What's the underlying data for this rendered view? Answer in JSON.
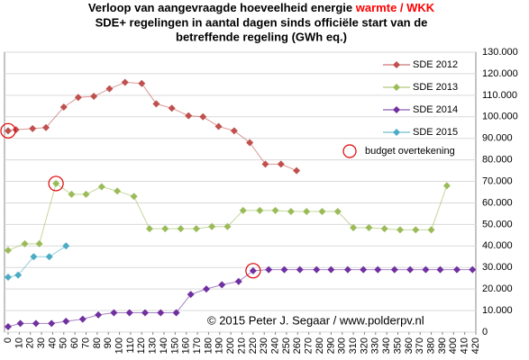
{
  "chart_data": {
    "type": "line",
    "title": "Verloop van aangevraagde hoeveelheid energie",
    "title_highlight": "warmte / WKK",
    "title_highlight_color": "#ff0000",
    "subtitle_lines": [
      "SDE+ regelingen in aantal dagen sinds officiële start van de",
      "betreffende regeling (GWh eq.)"
    ],
    "annotation": "© 2015 Peter J. Segaar / www.polderpv.nl",
    "xlim": [
      0,
      420
    ],
    "xticks": [
      0,
      10,
      20,
      30,
      40,
      50,
      60,
      70,
      80,
      90,
      100,
      110,
      120,
      130,
      140,
      150,
      160,
      170,
      180,
      190,
      200,
      210,
      220,
      230,
      240,
      250,
      260,
      270,
      280,
      290,
      300,
      310,
      320,
      330,
      340,
      350,
      360,
      370,
      380,
      390,
      400,
      410,
      420
    ],
    "ylim": [
      0,
      130000
    ],
    "yticks": [
      0,
      {
        "value": 10000,
        "label": "10.000"
      },
      {
        "value": 20000,
        "label": "20.000"
      },
      {
        "value": 30000,
        "label": "30.000"
      },
      {
        "value": 40000,
        "label": "40.000"
      },
      {
        "value": 50000,
        "label": "50.000"
      },
      {
        "value": 60000,
        "label": "60.000"
      },
      {
        "value": 70000,
        "label": "70.000"
      },
      {
        "value": 80000,
        "label": "80.000"
      },
      {
        "value": 90000,
        "label": "90.000"
      },
      {
        "value": 100000,
        "label": "100.000"
      },
      {
        "value": 110000,
        "label": "110.000"
      },
      {
        "value": 120000,
        "label": "120.000"
      },
      {
        "value": 130000,
        "label": "130.000"
      }
    ],
    "grid": true,
    "legend": "top-right",
    "series": [
      {
        "name": "SDE 2012",
        "color": "#c0504d",
        "x": [
          0,
          7,
          22,
          34,
          50,
          63,
          77,
          91,
          105,
          120,
          133,
          147,
          162,
          175,
          189,
          203,
          217,
          231,
          245,
          259
        ],
        "values": [
          93500,
          94000,
          94500,
          95000,
          104500,
          109000,
          109500,
          113000,
          116000,
          115500,
          106000,
          104000,
          100500,
          100000,
          95500,
          93500,
          88000,
          78000,
          78000,
          75000
        ]
      },
      {
        "name": "SDE 2013",
        "color": "#9bbb59",
        "x": [
          0,
          15,
          28,
          43,
          57,
          70,
          84,
          98,
          113,
          127,
          141,
          155,
          169,
          183,
          197,
          211,
          226,
          240,
          254,
          268,
          282,
          296,
          310,
          324,
          338,
          352,
          366,
          380,
          394
        ],
        "values": [
          38000,
          41000,
          41000,
          69000,
          64000,
          64000,
          67500,
          65500,
          63000,
          48000,
          48000,
          48000,
          48000,
          49000,
          49000,
          56500,
          56500,
          56500,
          56000,
          56000,
          56000,
          56000,
          48500,
          48500,
          48000,
          47500,
          47500,
          47500,
          68000
        ]
      },
      {
        "name": "SDE 2014",
        "color": "#7030a0",
        "x": [
          0,
          11,
          25,
          39,
          52,
          67,
          81,
          95,
          109,
          123,
          137,
          151,
          164,
          178,
          192,
          207,
          220,
          234,
          248,
          262,
          277,
          290,
          305,
          319,
          332,
          347,
          361,
          375,
          388,
          403,
          417
        ],
        "values": [
          2500,
          4000,
          4000,
          4000,
          5000,
          6000,
          8000,
          9000,
          9000,
          9000,
          9000,
          9000,
          17500,
          20000,
          22000,
          23500,
          28500,
          29000,
          29000,
          29000,
          29000,
          29000,
          29000,
          29000,
          29000,
          29000,
          29000,
          29000,
          29000,
          29000,
          29000
        ]
      },
      {
        "name": "SDE 2015",
        "color": "#4bacc6",
        "x": [
          0,
          9,
          23,
          37,
          52
        ],
        "values": [
          25500,
          26500,
          35000,
          35000,
          40000
        ]
      }
    ],
    "budget": {
      "name": "budget overtekening",
      "color": "#e00000",
      "x": [
        0,
        43,
        220
      ],
      "values": [
        93500,
        69000,
        28500
      ]
    }
  }
}
